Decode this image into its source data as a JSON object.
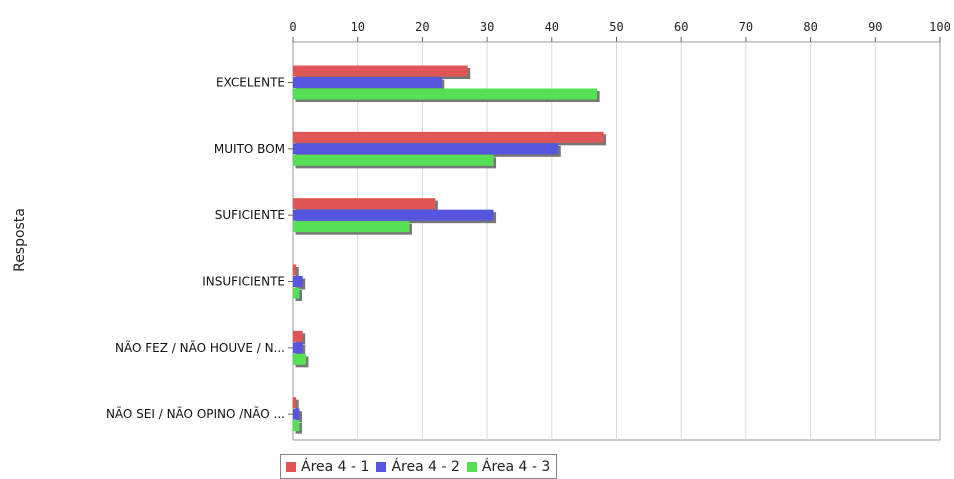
{
  "chart_data": {
    "type": "bar",
    "orientation": "horizontal",
    "ylabel": "Resposta",
    "xlim": [
      0,
      100
    ],
    "x_ticks": [
      0,
      10,
      20,
      30,
      40,
      50,
      60,
      70,
      80,
      90,
      100
    ],
    "categories": [
      "EXCELENTE",
      "MUITO BOM",
      "SUFICIENTE",
      "INSUFICIENTE",
      "NÃO FEZ / NÃO HOUVE / N...",
      "NÃO SEI / NÃO OPINO /NÃO ..."
    ],
    "series": [
      {
        "name": "Área 4 - 1",
        "color": "#e05555",
        "values": [
          27,
          48,
          22,
          0.5,
          1.5,
          0.5
        ]
      },
      {
        "name": "Área 4 - 2",
        "color": "#5555dd",
        "values": [
          23,
          41,
          31,
          1.5,
          1.5,
          1
        ]
      },
      {
        "name": "Área 4 - 3",
        "color": "#55e055",
        "values": [
          47,
          31,
          18,
          1,
          2,
          1
        ]
      }
    ],
    "grid": true,
    "legend_position": "bottom"
  }
}
